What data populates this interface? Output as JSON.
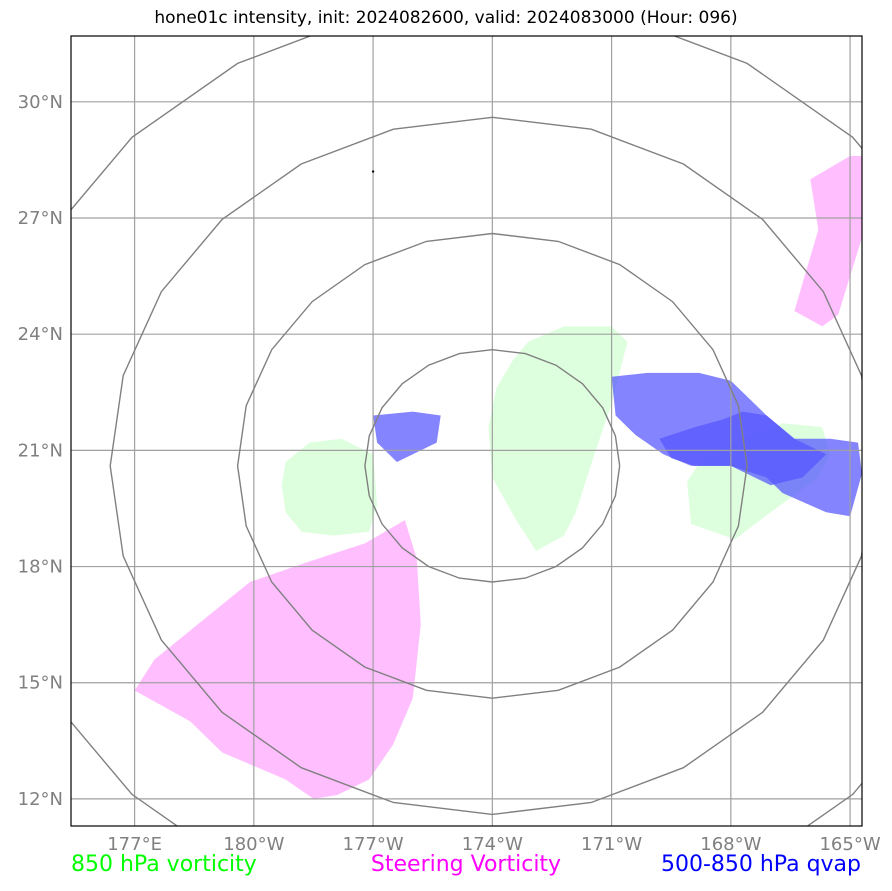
{
  "title": "hone01c intensity, init: 2024082600, valid: 2024083000 (Hour: 096)",
  "axes": {
    "lon_ticks": [
      {
        "lon": 177,
        "label": "177°E"
      },
      {
        "lon": 180,
        "label": "180°W"
      },
      {
        "lon": 183,
        "label": "177°W"
      },
      {
        "lon": 186,
        "label": "174°W"
      },
      {
        "lon": 189,
        "label": "171°W"
      },
      {
        "lon": 192,
        "label": "168°W"
      },
      {
        "lon": 195,
        "label": "165°W"
      }
    ],
    "lat_ticks": [
      {
        "lat": 12,
        "label": "12°N"
      },
      {
        "lat": 15,
        "label": "15°N"
      },
      {
        "lat": 18,
        "label": "18°N"
      },
      {
        "lat": 21,
        "label": "21°N"
      },
      {
        "lat": 24,
        "label": "24°N"
      },
      {
        "lat": 27,
        "label": "27°N"
      },
      {
        "lat": 30,
        "label": "30°N"
      }
    ],
    "lon_range": [
      175.4,
      195.3
    ],
    "lat_range": [
      11.3,
      31.7
    ],
    "grid": true
  },
  "storm_center": {
    "lon": 186.0,
    "lat": 20.6
  },
  "range_rings_deg": [
    3,
    6,
    9,
    12
  ],
  "legend": [
    {
      "key": "vort850",
      "label": "850 hPa vorticity",
      "color": "#00ff00"
    },
    {
      "key": "steering",
      "label": "Steering Vorticity",
      "color": "#ff00ff"
    },
    {
      "key": "qvap",
      "label": "500-850 hPa qvap",
      "color": "#0000ff"
    }
  ],
  "layers": {
    "vort850": {
      "fill": "#ccffcc",
      "opacity": 0.65,
      "polygons": [
        [
          [
            186.9,
            23.8
          ],
          [
            187.8,
            24.2
          ],
          [
            189.0,
            24.2
          ],
          [
            189.4,
            23.8
          ],
          [
            189.0,
            22.2
          ],
          [
            188.6,
            21.0
          ],
          [
            188.1,
            19.4
          ],
          [
            187.8,
            18.8
          ],
          [
            187.1,
            18.4
          ],
          [
            186.6,
            19.2
          ],
          [
            186.0,
            20.3
          ],
          [
            185.9,
            21.6
          ],
          [
            186.1,
            22.6
          ],
          [
            186.5,
            23.3
          ]
        ],
        [
          [
            180.8,
            20.7
          ],
          [
            181.4,
            21.2
          ],
          [
            182.2,
            21.3
          ],
          [
            183.0,
            20.9
          ],
          [
            183.1,
            19.6
          ],
          [
            182.9,
            18.9
          ],
          [
            182.0,
            18.8
          ],
          [
            181.2,
            18.9
          ],
          [
            180.8,
            19.4
          ],
          [
            180.7,
            20.1
          ]
        ],
        [
          [
            192.1,
            21.2
          ],
          [
            193.3,
            21.7
          ],
          [
            194.3,
            21.6
          ],
          [
            194.5,
            20.9
          ],
          [
            194.2,
            20.3
          ],
          [
            193.0,
            19.4
          ],
          [
            192.1,
            18.7
          ],
          [
            191.0,
            19.1
          ],
          [
            190.9,
            20.2
          ],
          [
            191.3,
            20.8
          ]
        ]
      ]
    },
    "steering": {
      "fill": "#ffaaff",
      "opacity": 0.75,
      "polygons": [
        [
          [
            178.4,
            14.0
          ],
          [
            179.2,
            13.2
          ],
          [
            180.8,
            12.5
          ],
          [
            181.5,
            12.0
          ],
          [
            182.1,
            12.1
          ],
          [
            182.9,
            12.5
          ],
          [
            183.5,
            13.4
          ],
          [
            184.0,
            14.6
          ],
          [
            184.2,
            16.5
          ],
          [
            184.1,
            18.2
          ],
          [
            183.8,
            19.2
          ],
          [
            182.8,
            18.6
          ],
          [
            181.3,
            18.1
          ],
          [
            179.9,
            17.6
          ],
          [
            178.7,
            16.6
          ],
          [
            177.5,
            15.6
          ],
          [
            177.0,
            14.8
          ]
        ],
        [
          [
            195.0,
            28.6
          ],
          [
            195.3,
            28.6
          ],
          [
            195.3,
            26.5
          ],
          [
            194.7,
            24.5
          ],
          [
            194.3,
            24.2
          ],
          [
            193.6,
            24.6
          ],
          [
            193.8,
            25.3
          ],
          [
            194.2,
            26.7
          ],
          [
            194.0,
            28.0
          ]
        ]
      ]
    },
    "qvap": {
      "fill": "#5555ff",
      "opacity": 0.72,
      "polygons": [
        [
          [
            183.0,
            21.9
          ],
          [
            184.0,
            22.0
          ],
          [
            184.7,
            21.9
          ],
          [
            184.6,
            21.2
          ],
          [
            183.6,
            20.7
          ],
          [
            183.1,
            21.2
          ]
        ],
        [
          [
            189.0,
            22.9
          ],
          [
            189.9,
            23.0
          ],
          [
            191.2,
            23.0
          ],
          [
            192.0,
            22.8
          ],
          [
            192.6,
            22.2
          ],
          [
            192.9,
            21.9
          ],
          [
            193.6,
            21.3
          ],
          [
            194.5,
            21.3
          ],
          [
            195.2,
            21.2
          ],
          [
            195.3,
            20.4
          ],
          [
            195.0,
            19.3
          ],
          [
            194.4,
            19.4
          ],
          [
            193.3,
            19.9
          ],
          [
            192.9,
            20.3
          ],
          [
            192.0,
            20.6
          ],
          [
            191.0,
            20.6
          ],
          [
            190.3,
            20.9
          ],
          [
            189.6,
            21.4
          ],
          [
            189.1,
            21.9
          ]
        ],
        [
          [
            190.2,
            21.3
          ],
          [
            191.1,
            21.6
          ],
          [
            191.8,
            21.8
          ],
          [
            192.3,
            22.0
          ],
          [
            192.9,
            21.9
          ],
          [
            193.6,
            21.3
          ],
          [
            194.4,
            20.9
          ],
          [
            193.8,
            20.3
          ],
          [
            193.0,
            20.1
          ],
          [
            192.0,
            20.6
          ],
          [
            191.1,
            20.6
          ],
          [
            190.5,
            20.8
          ]
        ]
      ]
    }
  },
  "marker_dot": {
    "lon": 183.0,
    "lat": 28.2
  }
}
